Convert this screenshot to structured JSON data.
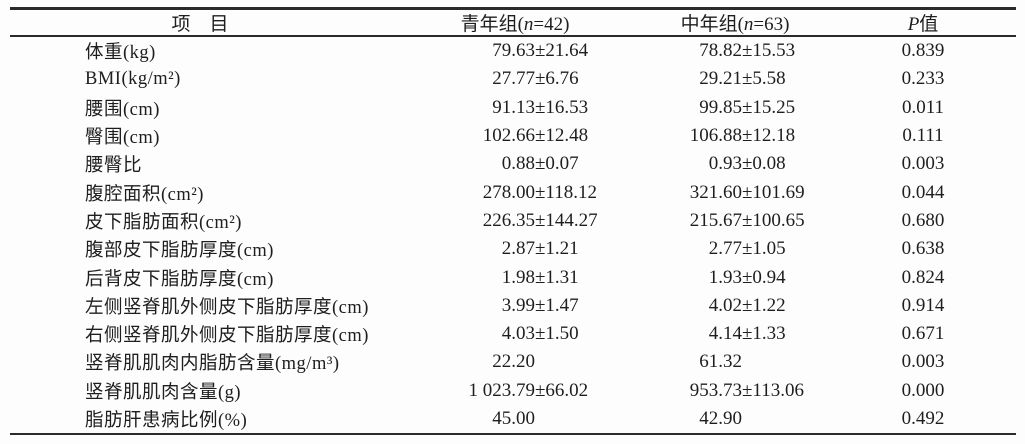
{
  "table": {
    "colors": {
      "text": "#1e1e1e",
      "rule_line": "#2b2b2b",
      "background": "#fdfdfd"
    },
    "header": {
      "item": "项　目",
      "young": {
        "prefix": "青年组(",
        "n": "n",
        "suffix": "=42)"
      },
      "middle": {
        "prefix": "中年组(",
        "n": "n",
        "suffix": "=63)"
      },
      "p": {
        "symbol": "P",
        "suffix": "值"
      }
    },
    "rows": [
      {
        "label": "体重(kg)",
        "young_mean": "79.63",
        "young_sd": "±21.64",
        "middle_mean": "78.82",
        "middle_sd": "±15.53",
        "p": "0.839"
      },
      {
        "label": "BMI(kg/m²)",
        "young_mean": "27.77",
        "young_sd": "±6.76",
        "middle_mean": "29.21",
        "middle_sd": "±5.58",
        "p": "0.233"
      },
      {
        "label": "腰围(cm)",
        "young_mean": "91.13",
        "young_sd": "±16.53",
        "middle_mean": "99.85",
        "middle_sd": "±15.25",
        "p": "0.011"
      },
      {
        "label": "臀围(cm)",
        "young_mean": "102.66",
        "young_sd": "±12.48",
        "middle_mean": "106.88",
        "middle_sd": "±12.18",
        "p": "0.111"
      },
      {
        "label": "腰臀比",
        "young_mean": "0.88",
        "young_sd": "±0.07",
        "middle_mean": "0.93",
        "middle_sd": "±0.08",
        "p": "0.003"
      },
      {
        "label": "腹腔面积(cm²)",
        "young_mean": "278.00",
        "young_sd": "±118.12",
        "middle_mean": "321.60",
        "middle_sd": "±101.69",
        "p": "0.044"
      },
      {
        "label": "皮下脂肪面积(cm²)",
        "young_mean": "226.35",
        "young_sd": "±144.27",
        "middle_mean": "215.67",
        "middle_sd": "±100.65",
        "p": "0.680"
      },
      {
        "label": "腹部皮下脂肪厚度(cm)",
        "young_mean": "2.87",
        "young_sd": "±1.21",
        "middle_mean": "2.77",
        "middle_sd": "±1.05",
        "p": "0.638"
      },
      {
        "label": "后背皮下脂肪厚度(cm)",
        "young_mean": "1.98",
        "young_sd": "±1.31",
        "middle_mean": "1.93",
        "middle_sd": "±0.94",
        "p": "0.824"
      },
      {
        "label": "左侧竖脊肌外侧皮下脂肪厚度(cm)",
        "young_mean": "3.99",
        "young_sd": "±1.47",
        "middle_mean": "4.02",
        "middle_sd": "±1.22",
        "p": "0.914"
      },
      {
        "label": "右侧竖脊肌外侧皮下脂肪厚度(cm)",
        "young_mean": "4.03",
        "young_sd": "±1.50",
        "middle_mean": "4.14",
        "middle_sd": "±1.33",
        "p": "0.671"
      },
      {
        "label": "竖脊肌肌肉内脂肪含量(mg/m³)",
        "young_mean": "22.20",
        "young_sd": "",
        "middle_mean": "61.32",
        "middle_sd": "",
        "p": "0.003"
      },
      {
        "label": "竖脊肌肌肉含量(g)",
        "young_mean": "1 023.79",
        "young_sd": "±66.02",
        "middle_mean": "953.73",
        "middle_sd": "±113.06",
        "p": "0.000"
      },
      {
        "label": "脂肪肝患病比例(%)",
        "young_mean": "45.00",
        "young_sd": "",
        "middle_mean": "42.90",
        "middle_sd": "",
        "p": "0.492"
      }
    ]
  }
}
